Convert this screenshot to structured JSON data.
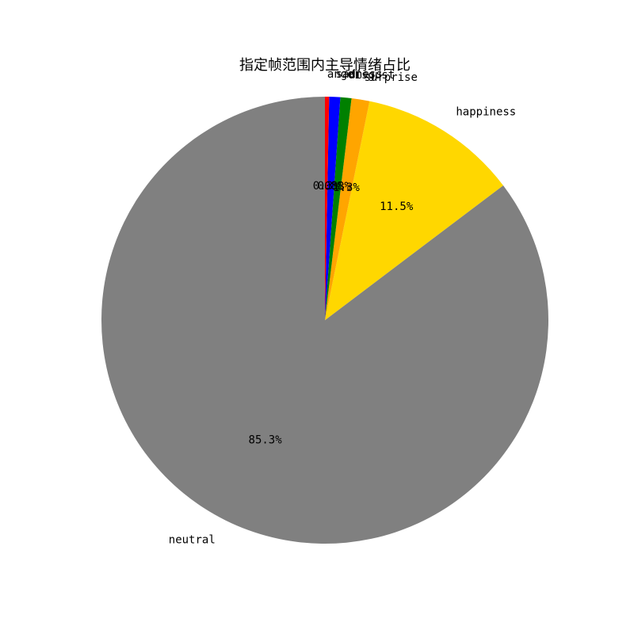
{
  "chart_data": {
    "type": "pie",
    "title": "指定帧范围内主导情绪占比",
    "start_angle_deg": 90,
    "direction": "counterclockwise",
    "slices": [
      {
        "label": "neutral",
        "value": 85.3,
        "pct_label": "85.3%",
        "color": "#808080"
      },
      {
        "label": "happiness",
        "value": 11.5,
        "pct_label": "11.5%",
        "color": "#FFD700"
      },
      {
        "label": "surprise",
        "value": 1.3,
        "pct_label": "1.3%",
        "color": "#FFA500"
      },
      {
        "label": "disgust",
        "value": 0.8,
        "pct_label": "0.8%",
        "color": "#008000"
      },
      {
        "label": "sadness",
        "value": 0.8,
        "pct_label": "0.8%",
        "color": "#0000FF"
      },
      {
        "label": "anger",
        "value": 0.3,
        "pct_label": "0.3%",
        "color": "#FF0000"
      }
    ]
  }
}
